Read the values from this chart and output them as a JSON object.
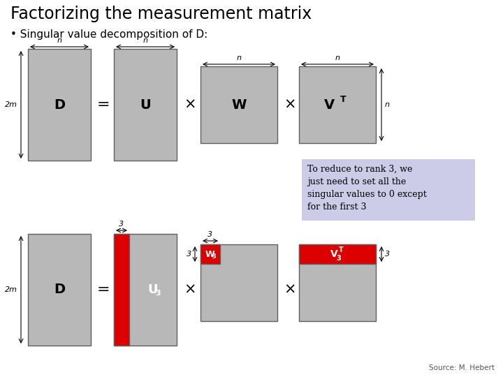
{
  "title": "Factorizing the measurement matrix",
  "subtitle": "• Singular value decomposition of D:",
  "background_color": "#ffffff",
  "gray_color": "#b8b8b8",
  "red_color": "#dd0000",
  "light_purple": "#cccce8",
  "text_color": "#000000",
  "source_text": "Source: M. Hebert",
  "note_text": "To reduce to rank 3, we\njust need to set all the\nsingular values to 0 except\nfor the first 3"
}
